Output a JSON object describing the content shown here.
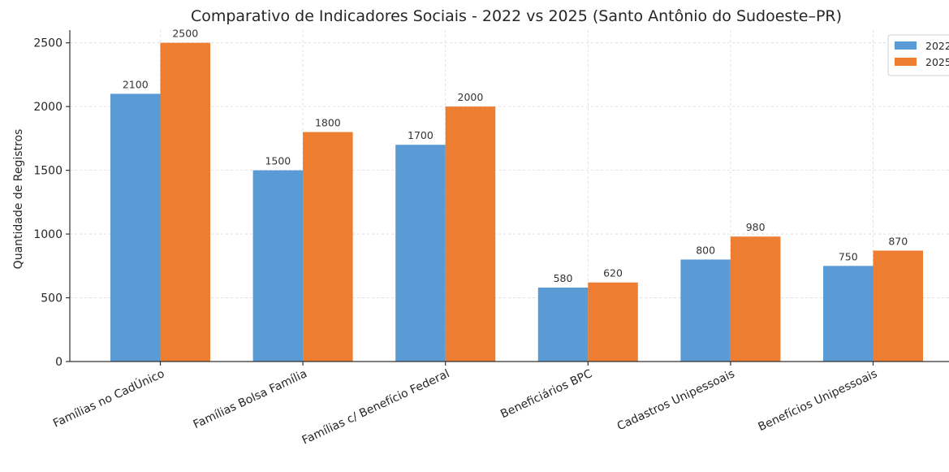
{
  "chart_data": {
    "type": "bar",
    "title": "Comparativo de Indicadores Sociais - 2022 vs 2025 (Santo Antônio do Sudoeste–PR)",
    "xlabel": "",
    "ylabel": "Quantidade de Registros",
    "ylim": [
      0,
      2600
    ],
    "yticks": [
      0,
      500,
      1000,
      1500,
      2000,
      2500
    ],
    "grid": true,
    "legend_position": "top-right",
    "categories": [
      "Famílias no CadÚnico",
      "Famílias Bolsa Família",
      "Famílias c/ Benefício Federal",
      "Beneficiários BPC",
      "Cadastros Unipessoais",
      "Benefícios Unipessoais"
    ],
    "series": [
      {
        "name": "2022",
        "color": "#5b9bd5",
        "values": [
          2100,
          1500,
          1700,
          580,
          800,
          750
        ]
      },
      {
        "name": "2025",
        "color": "#ed7d31",
        "values": [
          2500,
          1800,
          2000,
          620,
          980,
          870
        ]
      }
    ]
  }
}
